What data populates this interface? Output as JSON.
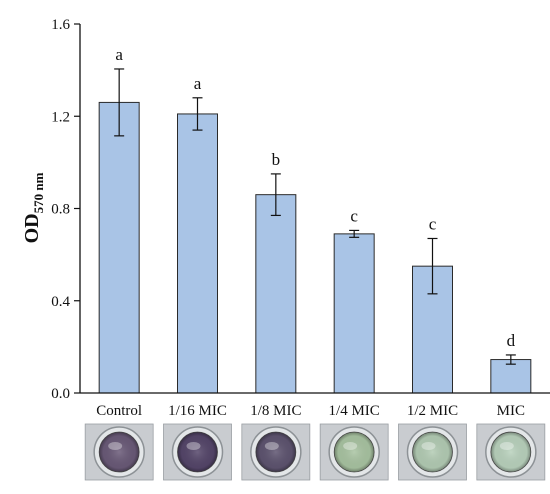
{
  "chart_data": {
    "type": "bar",
    "categories": [
      "Control",
      "1/16 MIC",
      "1/8 MIC",
      "1/4 MIC",
      "1/2 MIC",
      "MIC"
    ],
    "values": [
      1.26,
      1.21,
      0.86,
      0.69,
      0.55,
      0.145
    ],
    "errors": [
      0.145,
      0.07,
      0.09,
      0.015,
      0.12,
      0.02
    ],
    "significance": [
      "a",
      "a",
      "b",
      "c",
      "c",
      "d"
    ],
    "ylabel": "OD",
    "ylabel_subscript": "570 nm",
    "ylim": [
      0.0,
      1.6
    ],
    "yticks": [
      "0.0",
      "0.4",
      "0.8",
      "1.2",
      "1.6"
    ],
    "bar_color": "#a9c4e6",
    "bar_edge_color": "#2a2a2a",
    "grid": false,
    "legend": "none",
    "well_images": [
      {
        "tint": "#6a5a78"
      },
      {
        "tint": "#55466a"
      },
      {
        "tint": "#5e5470"
      },
      {
        "tint": "#a9c4a2"
      },
      {
        "tint": "#b3ccb4"
      },
      {
        "tint": "#b9d2bd"
      }
    ]
  }
}
